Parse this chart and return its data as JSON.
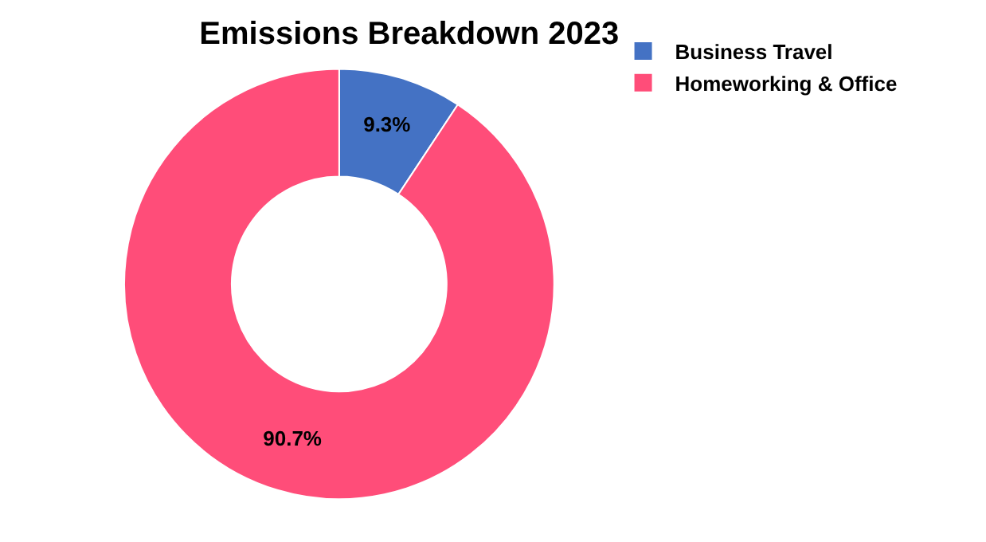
{
  "chart_data": {
    "type": "donut",
    "title": "Emissions Breakdown 2023",
    "categories": [
      "Business Travel",
      "Homeworking & Office"
    ],
    "values": [
      9.3,
      90.7
    ],
    "colors": [
      "#4472c4",
      "#ff4d79"
    ],
    "value_labels": [
      "9.3%",
      "90.7%"
    ],
    "legend": "top right"
  }
}
